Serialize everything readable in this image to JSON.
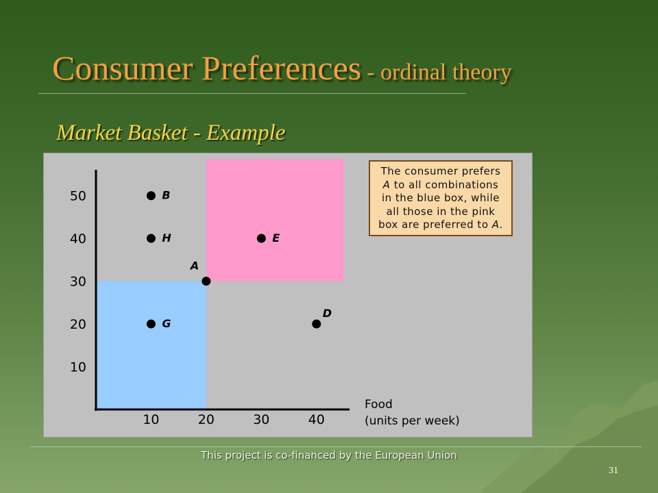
{
  "slide": {
    "title_main": "Consumer Preferences",
    "title_sub": "- ordinal theory",
    "subtitle": "Market Basket - Example",
    "footer": "This project is co-financed by the European Union",
    "page_number": "31"
  },
  "note": {
    "lines": [
      "The consumer prefers",
      "A to all combinations",
      "in the blue box, while",
      "all those in the pink",
      "box are preferred to A."
    ]
  },
  "chart_data": {
    "type": "scatter",
    "title": "",
    "xlabel": [
      "Food",
      "(units per week)"
    ],
    "ylabel": "",
    "x_ticks": [
      10,
      20,
      30,
      40
    ],
    "y_ticks": [
      10,
      20,
      30,
      40,
      50
    ],
    "xlim": [
      0,
      46
    ],
    "ylim": [
      0,
      57
    ],
    "grid": false,
    "points": [
      {
        "label": "B",
        "x": 10,
        "y": 50
      },
      {
        "label": "H",
        "x": 10,
        "y": 40
      },
      {
        "label": "E",
        "x": 30,
        "y": 40
      },
      {
        "label": "A",
        "x": 20,
        "y": 30
      },
      {
        "label": "G",
        "x": 10,
        "y": 20
      },
      {
        "label": "D",
        "x": 40,
        "y": 20
      }
    ],
    "regions": [
      {
        "name": "blue-box",
        "x": [
          0,
          20
        ],
        "y": [
          0,
          30
        ],
        "color": "#99ccff"
      },
      {
        "name": "pink-box",
        "x": [
          20,
          45
        ],
        "y": [
          30,
          60
        ],
        "color": "#ff99cc"
      }
    ]
  }
}
